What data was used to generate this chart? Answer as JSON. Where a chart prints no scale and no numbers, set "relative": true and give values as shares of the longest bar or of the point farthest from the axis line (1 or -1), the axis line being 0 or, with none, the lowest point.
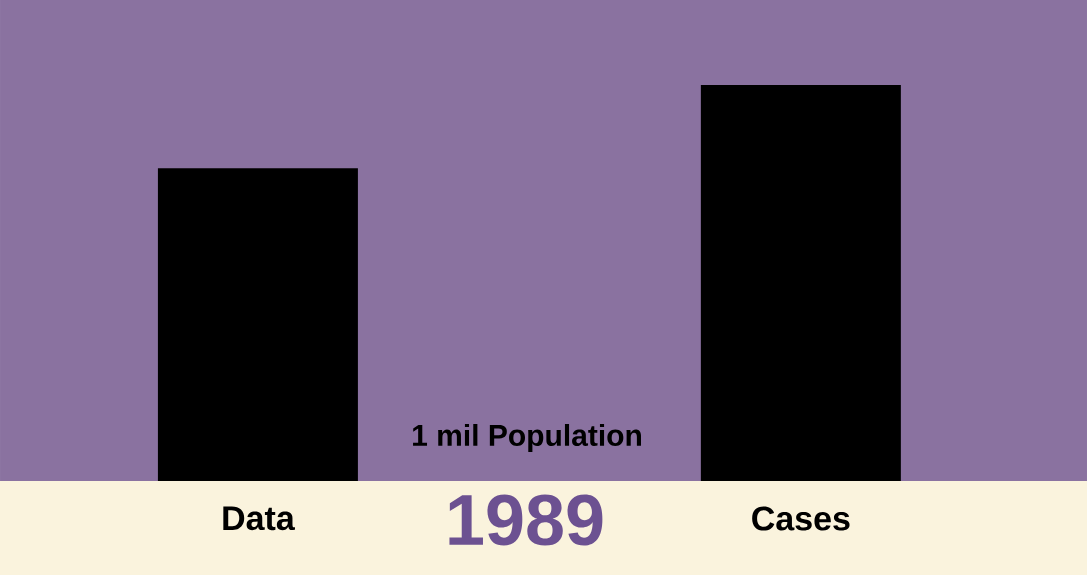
{
  "chart_data": {
    "type": "bar",
    "title": "1989",
    "subtitle": "1 mil Population",
    "categories": [
      "Data",
      "Cases"
    ],
    "values": [
      0.79,
      1
    ],
    "color": "#000000",
    "relative": true
  }
}
